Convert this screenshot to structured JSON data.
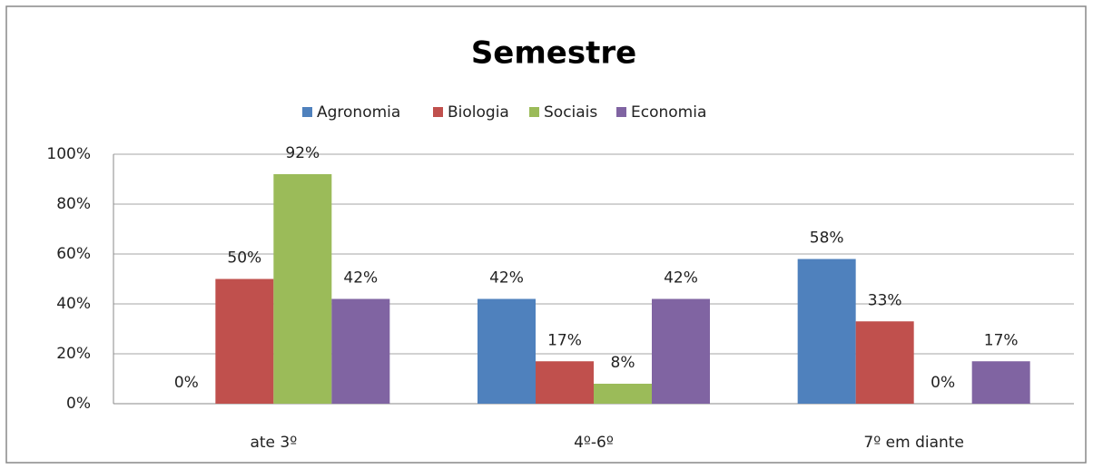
{
  "chart_data": {
    "type": "bar",
    "title": "Semestre",
    "categories": [
      "ate 3º",
      "4º-6º",
      "7º em diante"
    ],
    "series": [
      {
        "name": "Agronomia",
        "color": "#4f81bd",
        "values": [
          0,
          42,
          58
        ],
        "value_labels": [
          "0%",
          "42%",
          "58%"
        ]
      },
      {
        "name": "Biologia",
        "color": "#c0504d",
        "values": [
          50,
          17,
          33
        ],
        "value_labels": [
          "50%",
          "17%",
          "33%"
        ]
      },
      {
        "name": "Sociais",
        "color": "#9bbb59",
        "values": [
          92,
          8,
          0
        ],
        "value_labels": [
          "92%",
          "8%",
          "0%"
        ]
      },
      {
        "name": "Economia",
        "color": "#8064a2",
        "values": [
          42,
          42,
          17
        ],
        "value_labels": [
          "42%",
          "42%",
          "17%"
        ]
      }
    ],
    "ylim": [
      0,
      100
    ],
    "yticks": [
      {
        "value": 0,
        "label": "0%"
      },
      {
        "value": 20,
        "label": "20%"
      },
      {
        "value": 40,
        "label": "40%"
      },
      {
        "value": 60,
        "label": "60%"
      },
      {
        "value": 80,
        "label": "80%"
      },
      {
        "value": 100,
        "label": "100%"
      }
    ],
    "grid": true,
    "legend": "top"
  }
}
